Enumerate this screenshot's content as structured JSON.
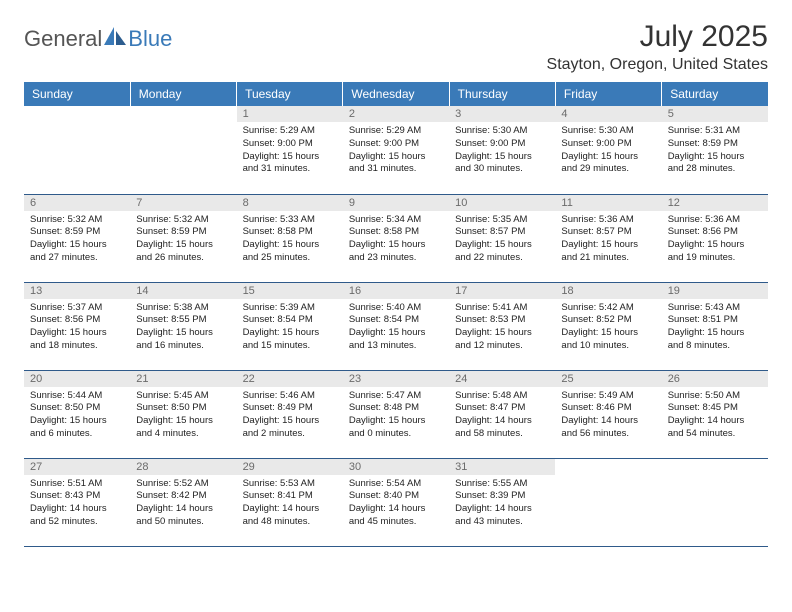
{
  "logo": {
    "text_general": "General",
    "text_blue": "Blue"
  },
  "header": {
    "month_title": "July 2025",
    "location": "Stayton, Oregon, United States"
  },
  "colors": {
    "header_bg": "#3a7ab8",
    "header_text": "#ffffff",
    "daynum_bg": "#e9e9e9",
    "daynum_text": "#6b6b6b",
    "cell_text": "#222222",
    "row_border": "#2f5a8a",
    "page_bg": "#ffffff"
  },
  "typography": {
    "month_title_fontsize": 30,
    "location_fontsize": 16,
    "weekday_fontsize": 12,
    "daynum_fontsize": 11,
    "cell_fontsize": 9.5
  },
  "weekday_headers": [
    "Sunday",
    "Monday",
    "Tuesday",
    "Wednesday",
    "Thursday",
    "Friday",
    "Saturday"
  ],
  "weeks": [
    [
      null,
      null,
      {
        "day": "1",
        "sunrise": "5:29 AM",
        "sunset": "9:00 PM",
        "daylight": "15 hours and 31 minutes."
      },
      {
        "day": "2",
        "sunrise": "5:29 AM",
        "sunset": "9:00 PM",
        "daylight": "15 hours and 31 minutes."
      },
      {
        "day": "3",
        "sunrise": "5:30 AM",
        "sunset": "9:00 PM",
        "daylight": "15 hours and 30 minutes."
      },
      {
        "day": "4",
        "sunrise": "5:30 AM",
        "sunset": "9:00 PM",
        "daylight": "15 hours and 29 minutes."
      },
      {
        "day": "5",
        "sunrise": "5:31 AM",
        "sunset": "8:59 PM",
        "daylight": "15 hours and 28 minutes."
      }
    ],
    [
      {
        "day": "6",
        "sunrise": "5:32 AM",
        "sunset": "8:59 PM",
        "daylight": "15 hours and 27 minutes."
      },
      {
        "day": "7",
        "sunrise": "5:32 AM",
        "sunset": "8:59 PM",
        "daylight": "15 hours and 26 minutes."
      },
      {
        "day": "8",
        "sunrise": "5:33 AM",
        "sunset": "8:58 PM",
        "daylight": "15 hours and 25 minutes."
      },
      {
        "day": "9",
        "sunrise": "5:34 AM",
        "sunset": "8:58 PM",
        "daylight": "15 hours and 23 minutes."
      },
      {
        "day": "10",
        "sunrise": "5:35 AM",
        "sunset": "8:57 PM",
        "daylight": "15 hours and 22 minutes."
      },
      {
        "day": "11",
        "sunrise": "5:36 AM",
        "sunset": "8:57 PM",
        "daylight": "15 hours and 21 minutes."
      },
      {
        "day": "12",
        "sunrise": "5:36 AM",
        "sunset": "8:56 PM",
        "daylight": "15 hours and 19 minutes."
      }
    ],
    [
      {
        "day": "13",
        "sunrise": "5:37 AM",
        "sunset": "8:56 PM",
        "daylight": "15 hours and 18 minutes."
      },
      {
        "day": "14",
        "sunrise": "5:38 AM",
        "sunset": "8:55 PM",
        "daylight": "15 hours and 16 minutes."
      },
      {
        "day": "15",
        "sunrise": "5:39 AM",
        "sunset": "8:54 PM",
        "daylight": "15 hours and 15 minutes."
      },
      {
        "day": "16",
        "sunrise": "5:40 AM",
        "sunset": "8:54 PM",
        "daylight": "15 hours and 13 minutes."
      },
      {
        "day": "17",
        "sunrise": "5:41 AM",
        "sunset": "8:53 PM",
        "daylight": "15 hours and 12 minutes."
      },
      {
        "day": "18",
        "sunrise": "5:42 AM",
        "sunset": "8:52 PM",
        "daylight": "15 hours and 10 minutes."
      },
      {
        "day": "19",
        "sunrise": "5:43 AM",
        "sunset": "8:51 PM",
        "daylight": "15 hours and 8 minutes."
      }
    ],
    [
      {
        "day": "20",
        "sunrise": "5:44 AM",
        "sunset": "8:50 PM",
        "daylight": "15 hours and 6 minutes."
      },
      {
        "day": "21",
        "sunrise": "5:45 AM",
        "sunset": "8:50 PM",
        "daylight": "15 hours and 4 minutes."
      },
      {
        "day": "22",
        "sunrise": "5:46 AM",
        "sunset": "8:49 PM",
        "daylight": "15 hours and 2 minutes."
      },
      {
        "day": "23",
        "sunrise": "5:47 AM",
        "sunset": "8:48 PM",
        "daylight": "15 hours and 0 minutes."
      },
      {
        "day": "24",
        "sunrise": "5:48 AM",
        "sunset": "8:47 PM",
        "daylight": "14 hours and 58 minutes."
      },
      {
        "day": "25",
        "sunrise": "5:49 AM",
        "sunset": "8:46 PM",
        "daylight": "14 hours and 56 minutes."
      },
      {
        "day": "26",
        "sunrise": "5:50 AM",
        "sunset": "8:45 PM",
        "daylight": "14 hours and 54 minutes."
      }
    ],
    [
      {
        "day": "27",
        "sunrise": "5:51 AM",
        "sunset": "8:43 PM",
        "daylight": "14 hours and 52 minutes."
      },
      {
        "day": "28",
        "sunrise": "5:52 AM",
        "sunset": "8:42 PM",
        "daylight": "14 hours and 50 minutes."
      },
      {
        "day": "29",
        "sunrise": "5:53 AM",
        "sunset": "8:41 PM",
        "daylight": "14 hours and 48 minutes."
      },
      {
        "day": "30",
        "sunrise": "5:54 AM",
        "sunset": "8:40 PM",
        "daylight": "14 hours and 45 minutes."
      },
      {
        "day": "31",
        "sunrise": "5:55 AM",
        "sunset": "8:39 PM",
        "daylight": "14 hours and 43 minutes."
      },
      null,
      null
    ]
  ],
  "labels": {
    "sunrise": "Sunrise:",
    "sunset": "Sunset:",
    "daylight": "Daylight:"
  }
}
